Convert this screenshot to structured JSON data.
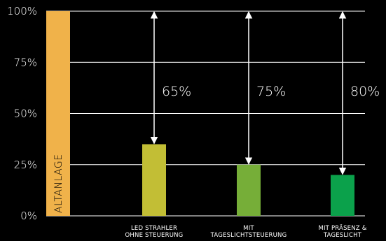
{
  "chart_data": {
    "type": "bar",
    "ylim": [
      0,
      100
    ],
    "yticks": [
      "0%",
      "25%",
      "50%",
      "75%",
      "100%"
    ],
    "yticks_values": [
      0,
      25,
      50,
      75,
      100
    ],
    "grid": true,
    "bars": [
      {
        "label_lines": [],
        "inner_label": "ALTANLAGE",
        "value": 100,
        "color": "#F0B24A"
      },
      {
        "label_lines": [
          "LED STRAHLER",
          "OHNE STEUERUNG"
        ],
        "value": 35,
        "color": "#C2BE35",
        "saving_label": "65%"
      },
      {
        "label_lines": [
          "MIT",
          "TAGESLICHTSTEUERUNG"
        ],
        "value": 25,
        "color": "#76AE38",
        "saving_label": "75%"
      },
      {
        "label_lines": [
          "MIT PRÄSENZ &",
          "TAGESLICHT"
        ],
        "value": 20,
        "color": "#0BA14B",
        "saving_label": "80%"
      }
    ],
    "colors": {
      "background": "#000000",
      "text": "#FFFFFF",
      "grid": "#FFFFFF"
    }
  }
}
